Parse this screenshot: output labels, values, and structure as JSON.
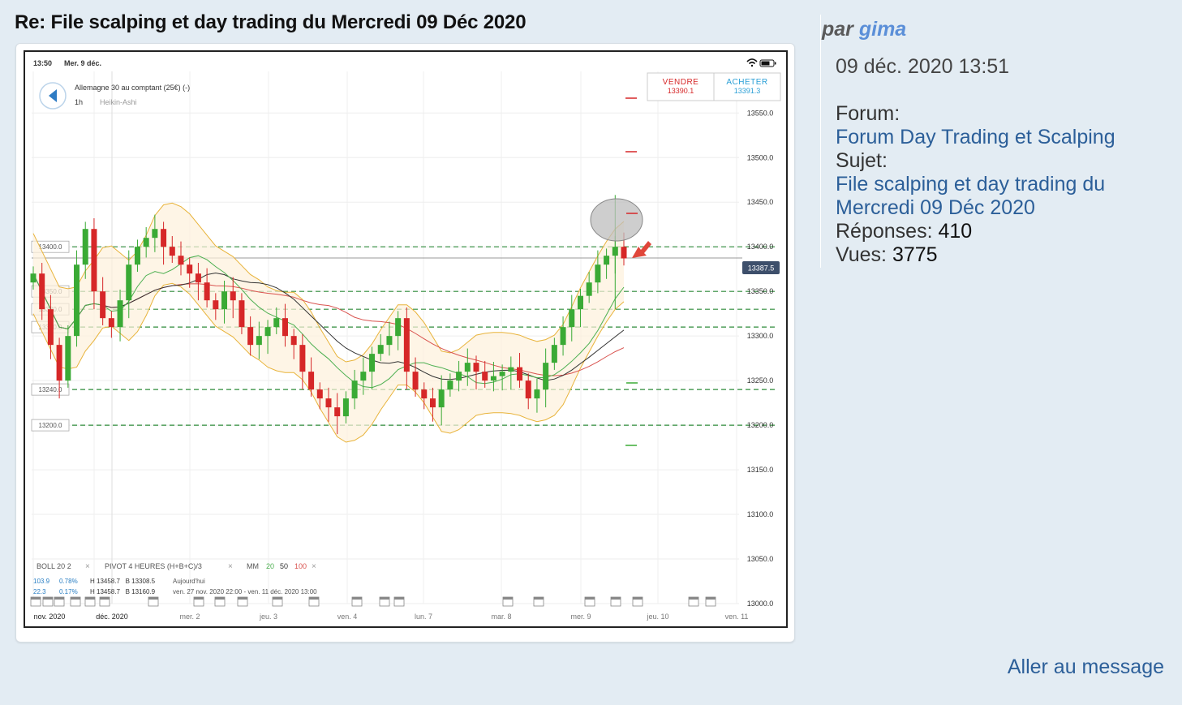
{
  "post": {
    "title": "Re: File scalping et day trading du Mercredi 09 Déc 2020",
    "by": "par",
    "author": "gima",
    "date": "09 déc. 2020 13:51",
    "forum_label": "Forum:",
    "forum_name": "Forum Day Trading et Scalping",
    "subject_label": "Sujet:",
    "subject_name": "File scalping et day trading du Mercredi 09 Déc 2020",
    "replies_label": "Réponses:",
    "replies": "410",
    "views_label": "Vues:",
    "views": "3775",
    "goto_label": "Aller au message"
  },
  "app": {
    "status_time": "13:50",
    "status_date": "Mer. 9 déc.",
    "instrument": "Allemagne 30 au comptant (25€) (-)",
    "timeframe": "1h",
    "chart_style": "Heikin-Ashi",
    "sell_label": "VENDRE",
    "sell_price": "13390.1",
    "buy_label": "ACHETER",
    "buy_price": "13391.3",
    "current_price": "13387.5",
    "indicators": {
      "boll": "BOLL  20  2",
      "pivot": "PIVOT  4 HEURES  (H+B+C)/3",
      "mm": "MM",
      "mm20": "20",
      "mm50": "50",
      "mm100": "100",
      "row1_a": "103.9",
      "row1_b": "0.78%",
      "row1_hb": "H 13458.7   B 13308.5",
      "row1_period": "Aujourd'hui",
      "row2_a": "22.3",
      "row2_b": "0.17%",
      "row2_hb": "H 13458.7   B 13160.9",
      "row2_period": "ven. 27 nov. 2020 22:00 - ven. 11 déc. 2020 13:00"
    },
    "colors": {
      "up": "#3aaa35",
      "down": "#d62728",
      "boll": "#e8b33a",
      "mm20": "#4caf50",
      "mm50": "#333333",
      "mm100": "#d9534f",
      "level": "#2e8b3a"
    }
  },
  "chart_data": {
    "type": "candlestick",
    "y_ticks": [
      "13550.0",
      "13500.0",
      "13450.0",
      "13400.0",
      "13350.0",
      "13300.0",
      "13250.0",
      "13200.0",
      "13150.0",
      "13100.0",
      "13050.0",
      "13000.0"
    ],
    "ylim": [
      13000,
      13583
    ],
    "x_ticks": [
      "nov. 2020",
      "déc. 2020",
      "mer. 2",
      "jeu. 3",
      "ven. 4",
      "lun. 7",
      "mar. 8",
      "mer. 9",
      "jeu. 10",
      "ven. 11"
    ],
    "levels": [
      {
        "label": "13400.0",
        "value": 13400
      },
      {
        "label": "13350.0",
        "value": 13350
      },
      {
        "label": "13330.0",
        "value": 13330
      },
      {
        "label": "13310.0",
        "value": 13310
      },
      {
        "label": "13240.0",
        "value": 13240
      },
      {
        "label": "13200.0",
        "value": 13200
      }
    ],
    "current_price": 13387.5,
    "close_series": [
      13370,
      13330,
      13290,
      13250,
      13300,
      13380,
      13420,
      13350,
      13320,
      13310,
      13340,
      13380,
      13400,
      13410,
      13420,
      13400,
      13390,
      13380,
      13370,
      13360,
      13340,
      13330,
      13350,
      13340,
      13310,
      13290,
      13300,
      13310,
      13320,
      13300,
      13290,
      13260,
      13240,
      13230,
      13220,
      13210,
      13230,
      13250,
      13260,
      13280,
      13290,
      13300,
      13320,
      13260,
      13240,
      13230,
      13220,
      13240,
      13250,
      13260,
      13270,
      13260,
      13250,
      13255,
      13260,
      13265,
      13250,
      13230,
      13240,
      13270,
      13290,
      13310,
      13330,
      13345,
      13360,
      13380,
      13390,
      13400,
      13387
    ],
    "annotations": [
      "circle around spike high",
      "red arrow pointing to last candle"
    ]
  }
}
